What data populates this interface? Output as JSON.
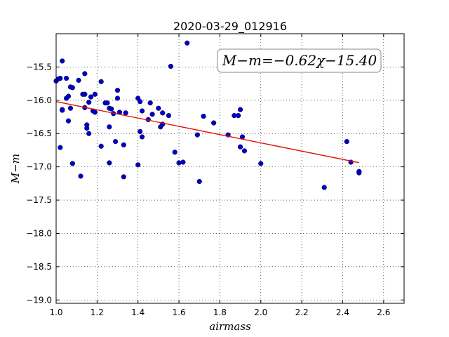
{
  "chart_data": {
    "type": "scatter",
    "title": "2020-03-29_012916",
    "xlabel": "airmass",
    "ylabel": "M−m",
    "xlim": [
      1.0,
      2.7
    ],
    "ylim": [
      -19.05,
      -15.0
    ],
    "y_inverted": true,
    "grid": true,
    "x_ticks": [
      1.0,
      1.2,
      1.4,
      1.6,
      1.8,
      2.0,
      2.2,
      2.4,
      2.6
    ],
    "x_tick_labels": [
      "1.0",
      "1.2",
      "1.4",
      "1.6",
      "1.8",
      "2.0",
      "2.2",
      "2.4",
      "2.6"
    ],
    "y_ticks": [
      -15.5,
      -16.0,
      -16.5,
      -17.0,
      -17.5,
      -18.0,
      -18.5,
      -19.0
    ],
    "y_tick_labels": [
      "−15.5",
      "−16.0",
      "−16.5",
      "−17.0",
      "−17.5",
      "−18.0",
      "−18.5",
      "−19.0"
    ],
    "annotation": "M−m=−0.62χ−15.40",
    "fit": {
      "slope": -0.62,
      "intercept": -15.4,
      "x_range": [
        1.0,
        2.48
      ],
      "color": "#e3120b"
    },
    "point_color": "#0000cc",
    "points": [
      [
        1.0,
        -15.71
      ],
      [
        1.01,
        -15.68
      ],
      [
        1.02,
        -15.67
      ],
      [
        1.03,
        -15.41
      ],
      [
        1.05,
        -15.97
      ],
      [
        1.05,
        -15.67
      ],
      [
        1.06,
        -15.94
      ],
      [
        1.07,
        -15.8
      ],
      [
        1.08,
        -15.81
      ],
      [
        1.03,
        -16.14
      ],
      [
        1.03,
        -16.15
      ],
      [
        1.06,
        -16.31
      ],
      [
        1.07,
        -16.12
      ],
      [
        1.02,
        -16.71
      ],
      [
        1.08,
        -16.95
      ],
      [
        1.11,
        -15.7
      ],
      [
        1.13,
        -15.91
      ],
      [
        1.14,
        -15.6
      ],
      [
        1.14,
        -15.91
      ],
      [
        1.14,
        -16.11
      ],
      [
        1.15,
        -16.37
      ],
      [
        1.15,
        -16.42
      ],
      [
        1.16,
        -16.5
      ],
      [
        1.16,
        -16.03
      ],
      [
        1.17,
        -15.95
      ],
      [
        1.18,
        -16.16
      ],
      [
        1.19,
        -16.18
      ],
      [
        1.19,
        -15.91
      ],
      [
        1.12,
        -17.14
      ],
      [
        1.22,
        -15.72
      ],
      [
        1.22,
        -16.69
      ],
      [
        1.24,
        -16.04
      ],
      [
        1.25,
        -16.04
      ],
      [
        1.26,
        -16.12
      ],
      [
        1.26,
        -16.4
      ],
      [
        1.27,
        -16.13
      ],
      [
        1.28,
        -16.2
      ],
      [
        1.26,
        -16.94
      ],
      [
        1.29,
        -16.62
      ],
      [
        1.3,
        -15.97
      ],
      [
        1.3,
        -15.85
      ],
      [
        1.31,
        -16.18
      ],
      [
        1.33,
        -16.67
      ],
      [
        1.34,
        -16.19
      ],
      [
        1.33,
        -17.15
      ],
      [
        1.4,
        -15.97
      ],
      [
        1.41,
        -16.02
      ],
      [
        1.41,
        -16.47
      ],
      [
        1.42,
        -16.55
      ],
      [
        1.42,
        -16.16
      ],
      [
        1.4,
        -16.97
      ],
      [
        1.45,
        -16.29
      ],
      [
        1.46,
        -16.04
      ],
      [
        1.47,
        -16.21
      ],
      [
        1.5,
        -16.12
      ],
      [
        1.51,
        -16.4
      ],
      [
        1.52,
        -16.19
      ],
      [
        1.52,
        -16.36
      ],
      [
        1.55,
        -16.23
      ],
      [
        1.56,
        -15.49
      ],
      [
        1.58,
        -16.78
      ],
      [
        1.6,
        -16.94
      ],
      [
        1.62,
        -16.93
      ],
      [
        1.64,
        -15.14
      ],
      [
        1.69,
        -16.52
      ],
      [
        1.7,
        -17.22
      ],
      [
        1.72,
        -16.24
      ],
      [
        1.77,
        -16.34
      ],
      [
        1.84,
        -16.52
      ],
      [
        1.87,
        -16.23
      ],
      [
        1.89,
        -16.23
      ],
      [
        1.9,
        -16.14
      ],
      [
        1.9,
        -16.7
      ],
      [
        1.91,
        -16.55
      ],
      [
        1.92,
        -16.76
      ],
      [
        2.0,
        -16.95
      ],
      [
        2.31,
        -17.31
      ],
      [
        2.42,
        -16.62
      ],
      [
        2.44,
        -16.93
      ],
      [
        2.48,
        -17.07
      ],
      [
        2.48,
        -17.09
      ]
    ]
  }
}
